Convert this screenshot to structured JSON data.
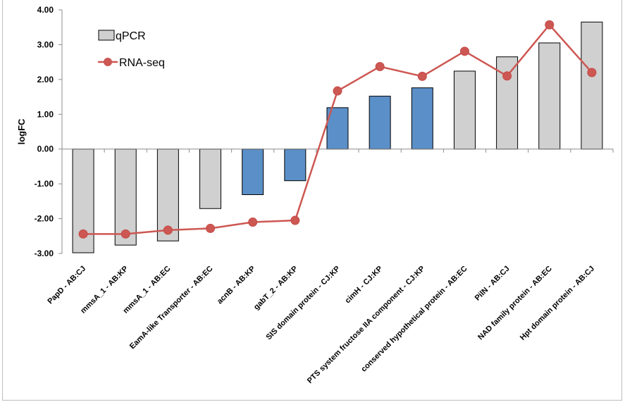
{
  "chart_data": {
    "type": "bar",
    "title": "",
    "xlabel": "",
    "ylabel": "logFC",
    "ylim": [
      -3,
      4
    ],
    "yticks": [
      "-3.00",
      "-2.00",
      "-1.00",
      "0.00",
      "1.00",
      "2.00",
      "3.00",
      "4.00"
    ],
    "categories": [
      "PapD - AB:CJ",
      "mmsA_1 - AB:KP",
      "mmsA_1 - AB:EC",
      "EamA-like Transporter - AB:EC",
      "acnB - AB:KP",
      "gabT_2 - AB:KP",
      "SIS domain protein - CJ:KP",
      "cimH - CJ:KP",
      "PTS system fructose IIA component - CJ:KP",
      "conserved hypothetical protein - AB:EC",
      "PilN - AB:CJ",
      "NAD family protein - AB:EC",
      "Hpt domain protein - AB:CJ"
    ],
    "series": [
      {
        "name": "qPCR",
        "type": "bar",
        "values": [
          -2.98,
          -2.76,
          -2.64,
          -1.71,
          -1.31,
          -0.91,
          1.19,
          1.52,
          1.76,
          2.24,
          2.65,
          3.05,
          3.65
        ],
        "bar_colors": [
          "#d0d0d0",
          "#d0d0d0",
          "#d0d0d0",
          "#d0d0d0",
          "#5b8fc8",
          "#5b8fc8",
          "#5b8fc8",
          "#5b8fc8",
          "#5b8fc8",
          "#d0d0d0",
          "#d0d0d0",
          "#d0d0d0",
          "#d0d0d0"
        ]
      },
      {
        "name": "RNA-seq",
        "type": "line",
        "color": "#cd5752",
        "values": [
          -2.44,
          -2.44,
          -2.33,
          -2.28,
          -2.1,
          -2.05,
          1.67,
          2.37,
          2.09,
          2.81,
          2.1,
          3.57,
          2.2
        ]
      }
    ],
    "legend_position": "top-left",
    "grid": false
  }
}
